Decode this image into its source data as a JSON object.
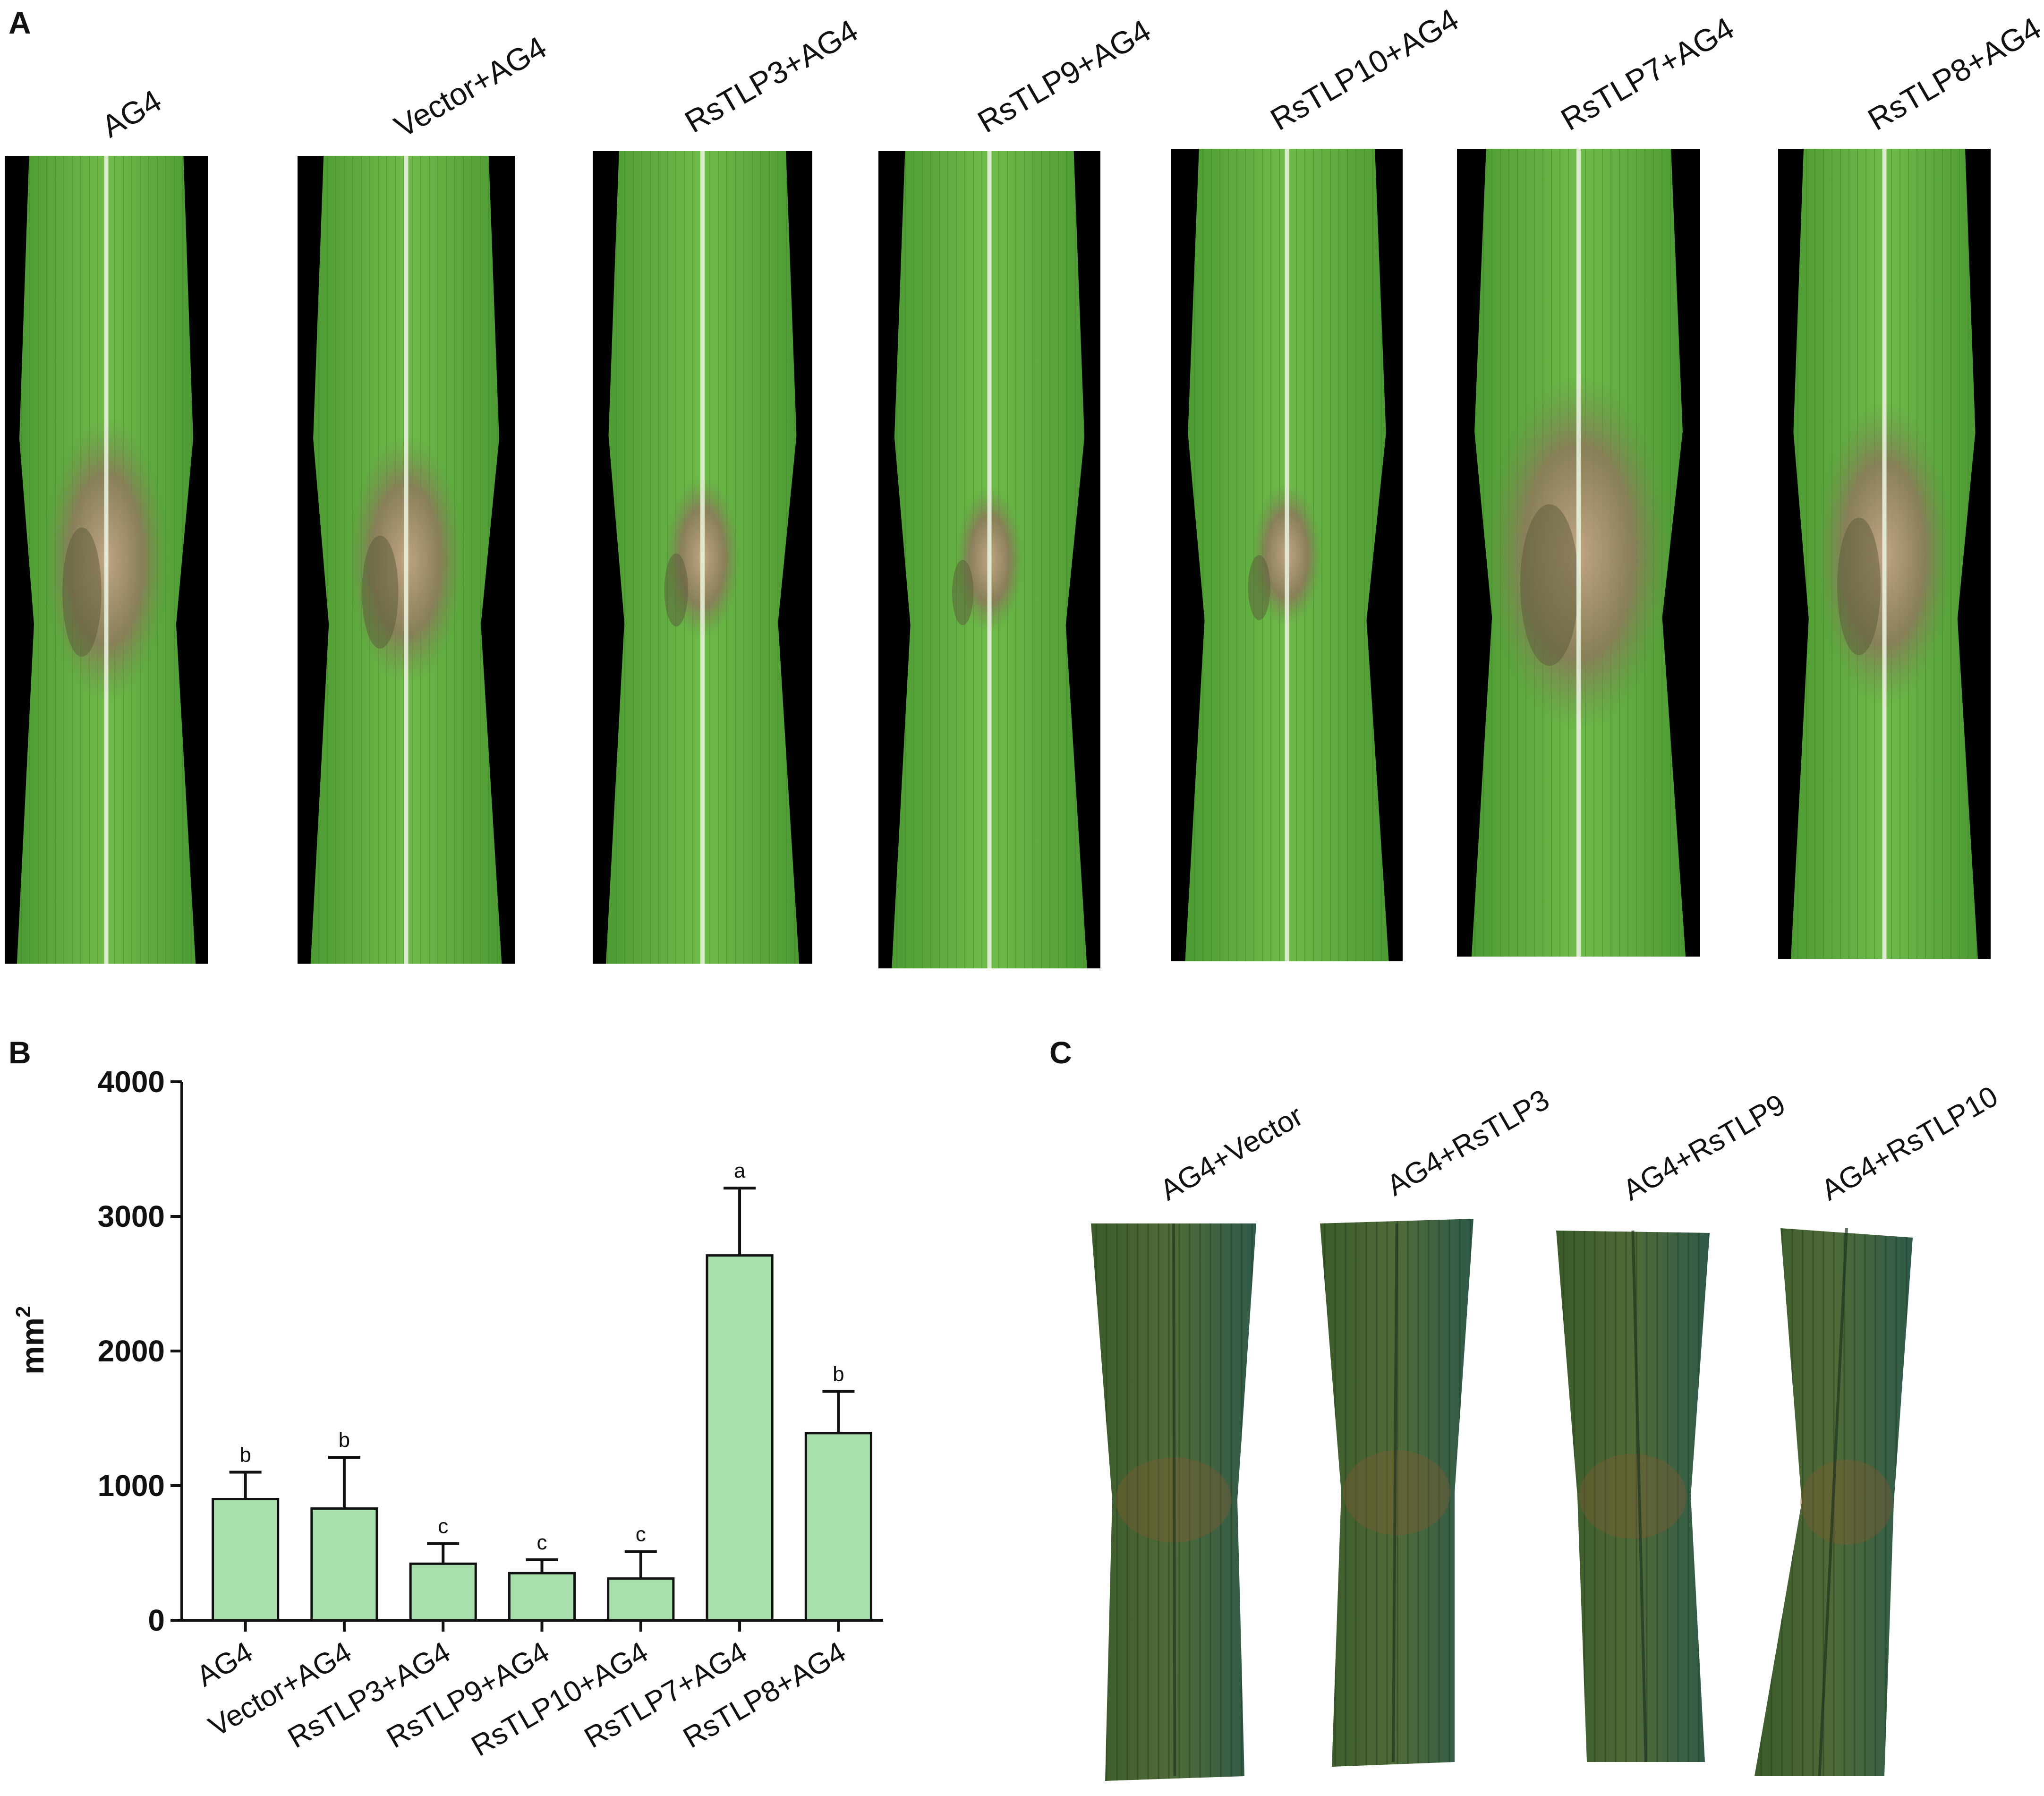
{
  "panels": {
    "a": {
      "letter": "A",
      "labels": [
        "AG4",
        "Vector+AG4",
        "RsTLP3+AG4",
        "RsTLP9+AG4",
        "RsTLP10+AG4",
        "RsTLP7+AG4",
        "RsTLP8+AG4"
      ]
    },
    "b": {
      "letter": "B"
    },
    "c": {
      "letter": "C",
      "labels": [
        "AG4+Vector",
        "AG4+RsTLP3",
        "AG4+RsTLP9",
        "AG4+RsTLP10"
      ]
    }
  },
  "colors": {
    "bar_fill": "#a8dfad",
    "bar_stroke": "#111111",
    "leaf_bg": "#000000",
    "leaf_green": "#5aa83a",
    "leaf_dark": "#3f6f2a"
  },
  "chart_data": {
    "type": "bar",
    "ylabel": "mm",
    "ylabel_sup": "2",
    "ylim": [
      0,
      4000
    ],
    "yticks": [
      "0",
      "1000",
      "2000",
      "3000",
      "4000"
    ],
    "categories": [
      "AG4",
      "Vector+AG4",
      "RsTLP3+AG4",
      "RsTLP9+AG4",
      "RsTLP10+AG4",
      "RsTLP7+AG4",
      "RsTLP8+AG4"
    ],
    "values": [
      900,
      830,
      420,
      350,
      310,
      2710,
      1390
    ],
    "errors": [
      200,
      380,
      150,
      100,
      200,
      500,
      310
    ],
    "significance": [
      "b",
      "b",
      "c",
      "c",
      "c",
      "a",
      "b"
    ],
    "grid": false
  }
}
